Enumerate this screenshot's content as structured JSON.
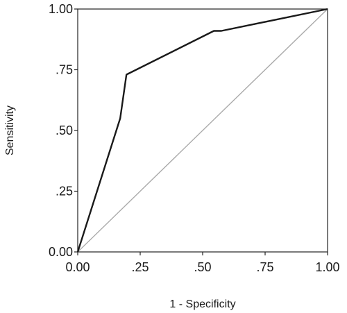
{
  "chart_data": {
    "type": "line",
    "title": "",
    "xlabel": "1 - Specificity",
    "ylabel": "Sensitivity",
    "xlim": [
      0,
      1
    ],
    "ylim": [
      0,
      1
    ],
    "grid": false,
    "x_ticks": [
      {
        "value": 0,
        "label": "0.00"
      },
      {
        "value": 0.25,
        "label": ".25"
      },
      {
        "value": 0.5,
        "label": ".50"
      },
      {
        "value": 0.75,
        "label": ".75"
      },
      {
        "value": 1,
        "label": "1.00"
      }
    ],
    "y_ticks": [
      {
        "value": 0,
        "label": "0.00"
      },
      {
        "value": 0.25,
        "label": ".25"
      },
      {
        "value": 0.5,
        "label": ".50"
      },
      {
        "value": 0.75,
        "label": ".75"
      },
      {
        "value": 1,
        "label": "1.00"
      }
    ],
    "series": [
      {
        "color": "#1a1a1a",
        "points": [
          {
            "x": 0,
            "y": 0
          },
          {
            "x": 0.17,
            "y": 0.55
          },
          {
            "x": 0.195,
            "y": 0.73
          },
          {
            "x": 0.545,
            "y": 0.91
          },
          {
            "x": 0.575,
            "y": 0.91
          },
          {
            "x": 1,
            "y": 1
          }
        ]
      },
      {
        "color": "#aaaaaa",
        "points": [
          {
            "x": 0,
            "y": 0
          },
          {
            "x": 1,
            "y": 1
          }
        ]
      }
    ]
  }
}
